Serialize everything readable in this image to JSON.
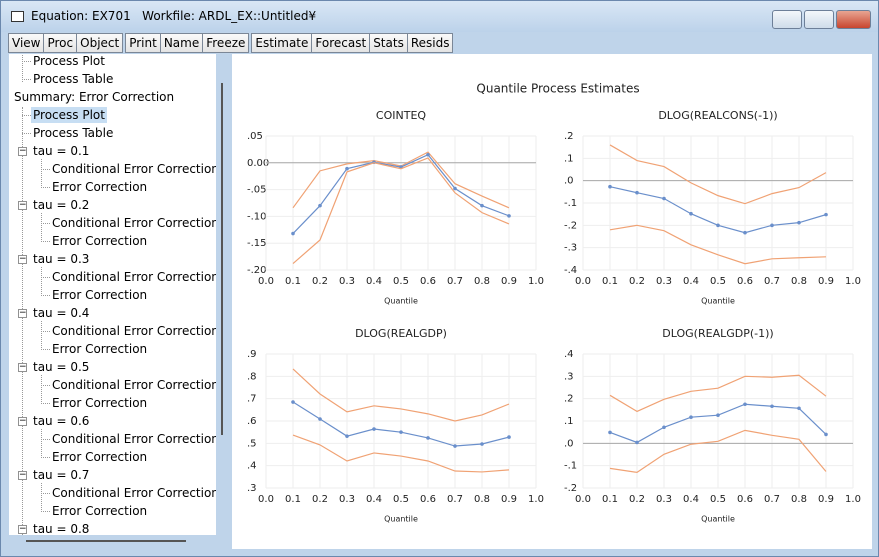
{
  "window": {
    "title": "Equation: EX701   Workfile: ARDL_EX::Untitled¥"
  },
  "toolbar": [
    [
      "View",
      "Proc",
      "Object"
    ],
    [
      "Print",
      "Name",
      "Freeze"
    ],
    [
      "Estimate",
      "Forecast",
      "Stats",
      "Resids"
    ]
  ],
  "tree": {
    "items": [
      "Process Plot",
      "Process Table"
    ],
    "summary": {
      "label": "Summary: Error Correction",
      "children": [
        "Process Plot",
        "Process Table"
      ]
    },
    "groups": [
      {
        "label": "tau = 0.1",
        "children": [
          "Conditional Error Correction",
          "Error Correction"
        ]
      },
      {
        "label": "tau = 0.2",
        "children": [
          "Conditional Error Correction",
          "Error Correction"
        ]
      },
      {
        "label": "tau = 0.3",
        "children": [
          "Conditional Error Correction",
          "Error Correction"
        ]
      },
      {
        "label": "tau = 0.4",
        "children": [
          "Conditional Error Correction",
          "Error Correction"
        ]
      },
      {
        "label": "tau = 0.5",
        "children": [
          "Conditional Error Correction",
          "Error Correction"
        ]
      },
      {
        "label": "tau = 0.6",
        "children": [
          "Conditional Error Correction",
          "Error Correction"
        ]
      },
      {
        "label": "tau = 0.7",
        "children": [
          "Conditional Error Correction",
          "Error Correction"
        ]
      },
      {
        "label": "tau = 0.8"
      }
    ]
  },
  "figure_title": "Quantile Process Estimates",
  "chart_data": [
    {
      "type": "line",
      "title": "COINTEQ",
      "xlabel": "Quantile",
      "grid": true,
      "hline": 0,
      "x": [
        0.1,
        0.2,
        0.3,
        0.4,
        0.5,
        0.6,
        0.7,
        0.8,
        0.9
      ],
      "xlim": [
        0,
        1
      ],
      "xticks": [
        {
          "value": 0,
          "label": "0.0"
        },
        0.1,
        0.2,
        0.3,
        0.4,
        0.5,
        0.6,
        0.7,
        0.8,
        0.9,
        {
          "value": 1,
          "label": "1.0"
        }
      ],
      "ylim": [
        -0.2,
        0.05
      ],
      "yticks": [
        {
          "value": 0.05,
          "label": ".05"
        },
        {
          "value": 0,
          "label": "0.00"
        },
        {
          "value": -0.05,
          "label": "-.05"
        },
        {
          "value": -0.1,
          "label": "-.10"
        },
        {
          "value": -0.15,
          "label": "-.15"
        },
        {
          "value": -0.2,
          "label": "-.20"
        }
      ],
      "series": [
        {
          "color": "#f0a274",
          "values": [
            -0.084,
            -0.015,
            -0.002,
            0.004,
            -0.006,
            0.02,
            -0.039,
            -0.062,
            -0.084
          ]
        },
        {
          "color": "#6a8fcb",
          "marker": true,
          "values": [
            -0.132,
            -0.08,
            -0.011,
            0.001,
            -0.008,
            0.015,
            -0.048,
            -0.08,
            -0.099
          ]
        },
        {
          "color": "#f0a274",
          "values": [
            -0.188,
            -0.144,
            -0.017,
            0.0,
            -0.011,
            0.009,
            -0.056,
            -0.093,
            -0.114
          ]
        }
      ]
    },
    {
      "type": "line",
      "title": "DLOG(REALCONS(-1))",
      "xlabel": "Quantile",
      "grid": true,
      "hline": 0,
      "x": [
        0.1,
        0.2,
        0.3,
        0.4,
        0.5,
        0.6,
        0.7,
        0.8,
        0.9
      ],
      "xlim": [
        0,
        1
      ],
      "xticks": [
        {
          "value": 0,
          "label": "0.0"
        },
        0.1,
        0.2,
        0.3,
        0.4,
        0.5,
        0.6,
        0.7,
        0.8,
        0.9,
        {
          "value": 1,
          "label": "1.0"
        }
      ],
      "ylim": [
        -0.4,
        0.2
      ],
      "yticks": [
        {
          "value": 0.2,
          "label": ".2"
        },
        {
          "value": 0.1,
          "label": ".1"
        },
        {
          "value": 0,
          "label": ".0"
        },
        {
          "value": -0.1,
          "label": "-.1"
        },
        {
          "value": -0.2,
          "label": "-.2"
        },
        {
          "value": -0.3,
          "label": "-.3"
        },
        {
          "value": -0.4,
          "label": "-.4"
        }
      ],
      "series": [
        {
          "color": "#f0a274",
          "values": [
            0.16,
            0.09,
            0.063,
            -0.01,
            -0.067,
            -0.103,
            -0.058,
            -0.031,
            0.036
          ]
        },
        {
          "color": "#6a8fcb",
          "marker": true,
          "values": [
            -0.027,
            -0.054,
            -0.08,
            -0.148,
            -0.2,
            -0.233,
            -0.2,
            -0.188,
            -0.152
          ]
        },
        {
          "color": "#f0a274",
          "values": [
            -0.22,
            -0.2,
            -0.224,
            -0.287,
            -0.332,
            -0.372,
            -0.35,
            -0.345,
            -0.341
          ]
        }
      ]
    },
    {
      "type": "line",
      "title": "DLOG(REALGDP)",
      "xlabel": "Quantile",
      "grid": true,
      "x": [
        0.1,
        0.2,
        0.3,
        0.4,
        0.5,
        0.6,
        0.7,
        0.8,
        0.9
      ],
      "xlim": [
        0,
        1
      ],
      "xticks": [
        {
          "value": 0,
          "label": "0.0"
        },
        0.1,
        0.2,
        0.3,
        0.4,
        0.5,
        0.6,
        0.7,
        0.8,
        0.9,
        {
          "value": 1,
          "label": "1.0"
        }
      ],
      "ylim": [
        0.3,
        0.9
      ],
      "yticks": [
        {
          "value": 0.9,
          "label": ".9"
        },
        {
          "value": 0.8,
          "label": ".8"
        },
        {
          "value": 0.7,
          "label": ".7"
        },
        {
          "value": 0.6,
          "label": ".6"
        },
        {
          "value": 0.5,
          "label": ".5"
        },
        {
          "value": 0.4,
          "label": ".4"
        },
        {
          "value": 0.3,
          "label": ".3"
        }
      ],
      "series": [
        {
          "color": "#f0a274",
          "values": [
            0.833,
            0.721,
            0.641,
            0.668,
            0.654,
            0.632,
            0.6,
            0.627,
            0.676
          ]
        },
        {
          "color": "#6a8fcb",
          "marker": true,
          "values": [
            0.685,
            0.609,
            0.532,
            0.564,
            0.55,
            0.524,
            0.488,
            0.497,
            0.528
          ]
        },
        {
          "color": "#f0a274",
          "values": [
            0.537,
            0.493,
            0.421,
            0.457,
            0.443,
            0.421,
            0.376,
            0.372,
            0.381
          ]
        }
      ]
    },
    {
      "type": "line",
      "title": "DLOG(REALGDP(-1))",
      "xlabel": "Quantile",
      "grid": true,
      "hline": 0,
      "x": [
        0.1,
        0.2,
        0.3,
        0.4,
        0.5,
        0.6,
        0.7,
        0.8,
        0.9
      ],
      "xlim": [
        0,
        1
      ],
      "xticks": [
        {
          "value": 0,
          "label": "0.0"
        },
        0.1,
        0.2,
        0.3,
        0.4,
        0.5,
        0.6,
        0.7,
        0.8,
        0.9,
        {
          "value": 1,
          "label": "1.0"
        }
      ],
      "ylim": [
        -0.2,
        0.4
      ],
      "yticks": [
        {
          "value": 0.4,
          "label": ".4"
        },
        {
          "value": 0.3,
          "label": ".3"
        },
        {
          "value": 0.2,
          "label": ".2"
        },
        {
          "value": 0.1,
          "label": ".1"
        },
        {
          "value": 0,
          "label": ".0"
        },
        {
          "value": -0.1,
          "label": "-.1"
        },
        {
          "value": -0.2,
          "label": "-.2"
        }
      ],
      "series": [
        {
          "color": "#f0a274",
          "values": [
            0.215,
            0.143,
            0.197,
            0.233,
            0.247,
            0.3,
            0.296,
            0.305,
            0.211
          ]
        },
        {
          "color": "#6a8fcb",
          "marker": true,
          "values": [
            0.049,
            0.004,
            0.072,
            0.117,
            0.126,
            0.175,
            0.166,
            0.157,
            0.04
          ]
        },
        {
          "color": "#f0a274",
          "values": [
            -0.112,
            -0.13,
            -0.049,
            -0.004,
            0.009,
            0.058,
            0.036,
            0.018,
            -0.126
          ]
        }
      ]
    }
  ]
}
